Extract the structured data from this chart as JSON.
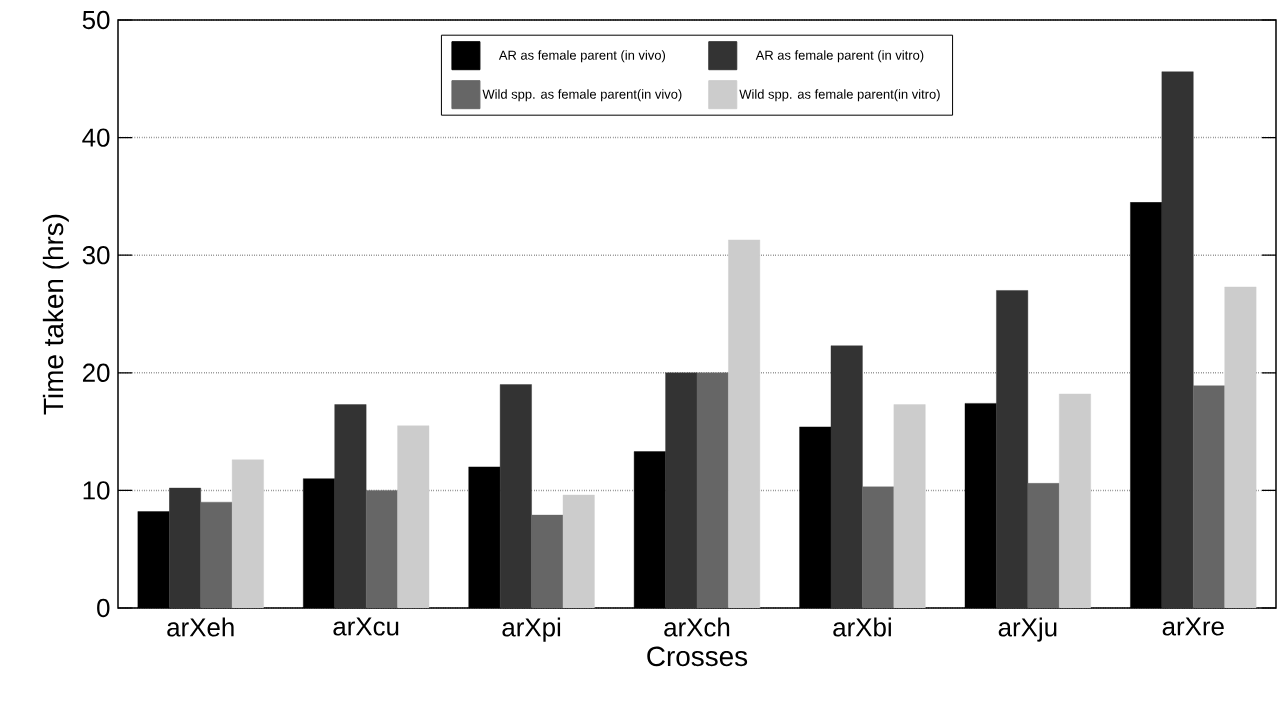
{
  "chart_data": {
    "type": "bar",
    "xlabel": "Crosses",
    "ylabel": "Time taken (hrs)",
    "categories": [
      "arXeh",
      "arXcu",
      "arXpi",
      "arXch",
      "arXbi",
      "arXju",
      "arXre"
    ],
    "series": [
      {
        "name": "AR as female parent (in vivo)",
        "color": "#000000",
        "values": [
          8.2,
          11.0,
          12.0,
          13.3,
          15.4,
          17.4,
          34.5
        ]
      },
      {
        "name": "AR as female parent (in vitro)",
        "color": "#333333",
        "values": [
          10.2,
          17.3,
          19.0,
          20.0,
          22.3,
          27.0,
          45.6
        ]
      },
      {
        "name": "Wild spp. as female parent(in vivo)",
        "color": "#666666",
        "values": [
          9.0,
          10.0,
          7.9,
          20.0,
          10.3,
          10.6,
          18.9
        ]
      },
      {
        "name": "Wild spp. as female parent(in vitro)",
        "color": "#cccccc",
        "values": [
          12.6,
          15.5,
          9.6,
          31.3,
          17.3,
          18.2,
          27.3
        ]
      }
    ],
    "ylim": [
      0,
      50
    ],
    "yticks": [
      0,
      10,
      20,
      30,
      40,
      50
    ],
    "grid": "y",
    "legend": "top"
  }
}
